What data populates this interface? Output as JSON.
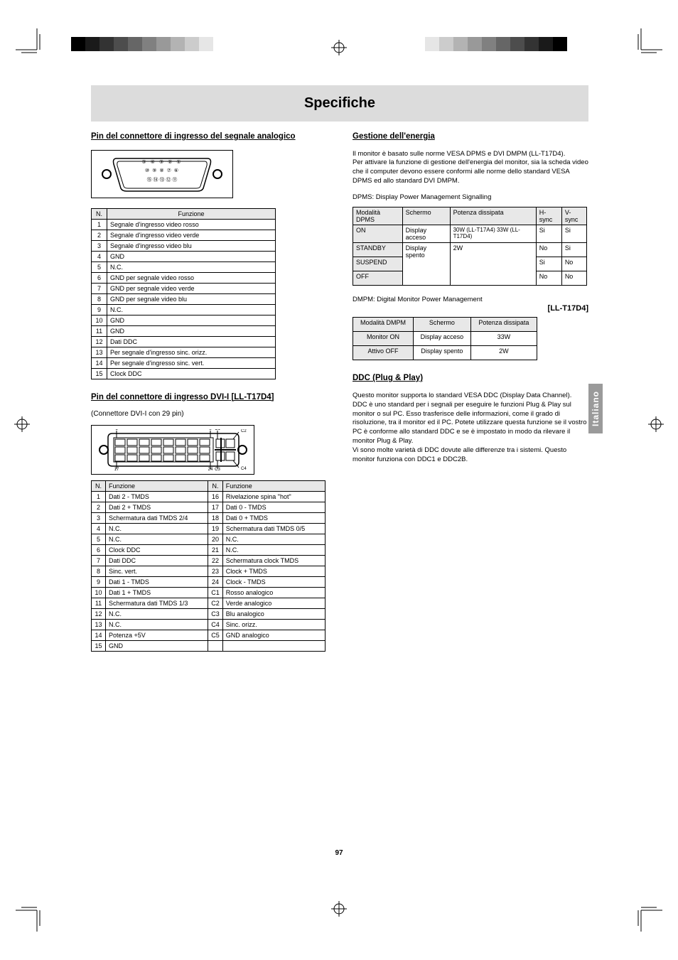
{
  "crop_marks": {
    "gradient_squares_left": [
      "#000000",
      "#1a1a1a",
      "#333333",
      "#4d4d4d",
      "#666666",
      "#808080",
      "#999999",
      "#b3b3b3",
      "#cccccc",
      "#e6e6e6"
    ],
    "gradient_squares_right": [
      "#e6e6e6",
      "#cccccc",
      "#b3b3b3",
      "#999999",
      "#808080",
      "#666666",
      "#4d4d4d",
      "#333333",
      "#1a1a1a",
      "#000000"
    ]
  },
  "title": "Specifiche",
  "side_tab": "Italiano",
  "page_number": "97",
  "left": {
    "section1_title": "Pin del connettore di ingresso del segnale analogico",
    "vga_pins": [
      "1",
      "2",
      "3",
      "4",
      "5",
      "6",
      "7",
      "8",
      "9",
      "10",
      "11",
      "12",
      "13",
      "14",
      "15"
    ],
    "analog_table": {
      "header": [
        "N.",
        "Funzione"
      ],
      "rows": [
        [
          "1",
          "Segnale d'ingresso video rosso"
        ],
        [
          "2",
          "Segnale d'ingresso video verde"
        ],
        [
          "3",
          "Segnale d'ingresso video blu"
        ],
        [
          "4",
          "GND"
        ],
        [
          "5",
          "N.C."
        ],
        [
          "6",
          "GND per segnale video rosso"
        ],
        [
          "7",
          "GND per segnale video verde"
        ],
        [
          "8",
          "GND per segnale video blu"
        ],
        [
          "9",
          "N.C."
        ],
        [
          "10",
          "GND"
        ],
        [
          "11",
          "GND"
        ],
        [
          "12",
          "Dati DDC"
        ],
        [
          "13",
          "Per segnale d'ingresso sinc. orizz."
        ],
        [
          "14",
          "Per segnale d'ingresso sinc. vert."
        ],
        [
          "15",
          "Clock DDC"
        ]
      ]
    },
    "section2_title_u": "Pin del connettore di ingresso DVI-I",
    "section2_title_extra": " [LL-T17D4]",
    "dvi_note": "(Connettore DVI-I con 29 pin)",
    "dvi_table": {
      "header": [
        "N.",
        "Funzione",
        "N.",
        "Funzione"
      ],
      "rows": [
        [
          "1",
          "Dati 2 - TMDS",
          "16",
          "Rivelazione spina \"hot\""
        ],
        [
          "2",
          "Dati 2 + TMDS",
          "17",
          "Dati 0 - TMDS"
        ],
        [
          "3",
          "Schermatura dati TMDS 2/4",
          "18",
          "Dati 0 + TMDS"
        ],
        [
          "4",
          "N.C.",
          "19",
          "Schermatura dati TMDS 0/5"
        ],
        [
          "5",
          "N.C.",
          "20",
          "N.C."
        ],
        [
          "6",
          "Clock DDC",
          "21",
          "N.C."
        ],
        [
          "7",
          "Dati DDC",
          "22",
          "Schermatura clock TMDS"
        ],
        [
          "8",
          "Sinc. vert.",
          "23",
          "Clock + TMDS"
        ],
        [
          "9",
          "Dati 1 - TMDS",
          "24",
          "Clock - TMDS"
        ],
        [
          "10",
          "Dati 1 + TMDS",
          "C1",
          "Rosso analogico"
        ],
        [
          "11",
          "Schermatura dati TMDS 1/3",
          "C2",
          "Verde analogico"
        ],
        [
          "12",
          "N.C.",
          "C3",
          "Blu analogico"
        ],
        [
          "13",
          "N.C.",
          "C4",
          "Sinc. orizz."
        ],
        [
          "14",
          "Potenza +5V",
          "C5",
          "GND analogico"
        ],
        [
          "15",
          "GND",
          "",
          ""
        ]
      ]
    }
  },
  "right": {
    "section_pm_title": "Gestione dell'energia",
    "pm_intro": "Il monitor è basato sulle norme VESA DPMS e DVI DMPM (LL-T17D4).\nPer attivare la funzione di gestione dell'energia del monitor, sia la scheda video che il computer devono essere conformi alle norme dello standard VESA DPMS ed allo standard DVI DMPM.",
    "pm_vesa_label": "DPMS: Display Power Management Signalling",
    "pm_table1": {
      "header": [
        "Modalità DPMS",
        "Schermo",
        "Potenza dissipata",
        "H-sync",
        "V-sync"
      ],
      "rows": [
        [
          "ON",
          "Display acceso",
          "30W (LL-T17A4) 33W (LL-T17D4)",
          "Si",
          "Si"
        ],
        [
          "STANDBY",
          "",
          "",
          "No",
          "Si"
        ],
        [
          "SUSPEND",
          "Display spento",
          "2W",
          "Si",
          "No"
        ],
        [
          "OFF",
          "",
          "",
          "No",
          "No"
        ]
      ],
      "merge": {
        "col1_rows_2to4": true,
        "col2_rows_2to4": true
      }
    },
    "pm_dmpm_label": "DMPM: Digital Monitor Power Management",
    "pm_t17d4_label": "[LL-T17D4]",
    "pm_table2": {
      "header": [
        "Modalità DMPM",
        "Schermo",
        "Potenza dissipata"
      ],
      "rows": [
        [
          "Monitor ON",
          "Display acceso",
          "33W"
        ],
        [
          "Attivo OFF",
          "Display spento",
          "2W"
        ]
      ]
    },
    "ddc_title": "DDC (Plug & Play)",
    "ddc_text": "Questo monitor supporta lo standard VESA DDC (Display Data Channel).\nDDC è uno standard per i segnali per eseguire le funzioni Plug & Play sul monitor o sul PC. Esso trasferisce delle informazioni, come il grado di risoluzione, tra il monitor ed il PC. Potete utilizzare questa funzione se il vostro PC è conforme allo standard DDC e se è impostato in modo da rilevare il monitor Plug & Play.\nVi sono molte varietà di DDC dovute alle differenze tra i sistemi. Questo monitor funziona con DDC1 e DDC2B."
  }
}
